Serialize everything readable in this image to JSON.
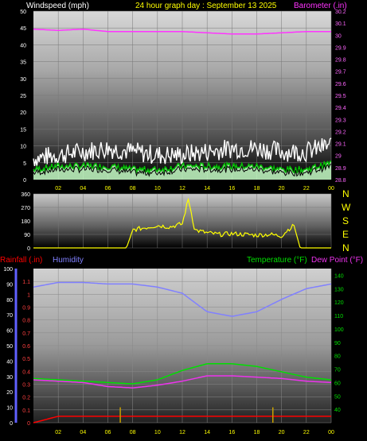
{
  "header": {
    "wind_title": "Windspeed (mph)",
    "graph_title": "24 hour graph day : September 13 2025",
    "baro_title": "Barometer (.in)"
  },
  "compass": [
    "N",
    "W",
    "S",
    "E",
    "N"
  ],
  "lower_header": {
    "rain": "Rainfall (.in)",
    "humidity": "Humidity",
    "temperature": "Temperature (°F)",
    "dewpoint": "Dew Point (°F)"
  },
  "colors": {
    "wind_gust": "#ffffff",
    "wind_avg": "#00c000",
    "wind_fill": "#c8ffc8",
    "barometer": "#ff33ff",
    "direction": "#ffff00",
    "humidity": "#8080ff",
    "temperature": "#00e000",
    "dewpoint": "#ee33ee",
    "rain": "#ff0000",
    "rain_bar": "#c8a000",
    "time_label": "#ffff00"
  },
  "x_ticks": [
    "02",
    "04",
    "06",
    "08",
    "10",
    "12",
    "14",
    "16",
    "18",
    "20",
    "22",
    "00"
  ],
  "chart_data": [
    {
      "type": "line",
      "name": "wind-barometer",
      "title": "24 hour graph day : September 13 2025",
      "x_ticks": [
        "02",
        "04",
        "06",
        "08",
        "10",
        "12",
        "14",
        "16",
        "18",
        "20",
        "22",
        "00"
      ],
      "y_left": {
        "label": "Windspeed (mph)",
        "ticks": [
          0,
          5,
          10,
          15,
          20,
          25,
          30,
          35,
          40,
          45,
          50
        ],
        "range": [
          0,
          50
        ]
      },
      "y_right": {
        "label": "Barometer (.in)",
        "ticks": [
          28.8,
          28.9,
          29,
          29.1,
          29.2,
          29.3,
          29.4,
          29.5,
          29.6,
          29.7,
          29.8,
          29.9,
          30,
          30.1,
          30.2
        ],
        "range": [
          28.8,
          30.2
        ]
      },
      "x_hours": [
        0,
        2,
        4,
        6,
        8,
        10,
        12,
        14,
        16,
        18,
        20,
        22,
        24
      ],
      "series": [
        {
          "name": "Barometer (.in)",
          "axis": "right",
          "values": [
            30.05,
            30.04,
            30.05,
            30.03,
            30.03,
            30.03,
            30.03,
            30.02,
            30.01,
            30.01,
            30.02,
            30.03,
            30.03
          ]
        },
        {
          "name": "gust",
          "axis": "left",
          "values": [
            6,
            7,
            8,
            9,
            8,
            7,
            7,
            8,
            9,
            9,
            8,
            8,
            10
          ]
        },
        {
          "name": "avg",
          "axis": "left",
          "values": [
            3,
            4,
            4,
            4,
            3,
            3,
            4,
            4,
            4,
            4,
            3,
            3,
            5
          ]
        }
      ]
    },
    {
      "type": "line",
      "name": "wind-direction",
      "y_ticks": [
        0,
        90,
        180,
        270,
        360
      ],
      "range": [
        0,
        360
      ],
      "x_hours": [
        0,
        7.5,
        8,
        9,
        10,
        11,
        12,
        12.5,
        13,
        14,
        15,
        16,
        17,
        18,
        19,
        20,
        20.5,
        21,
        21.5,
        24
      ],
      "values": [
        0,
        0,
        120,
        135,
        150,
        140,
        160,
        330,
        120,
        100,
        90,
        95,
        90,
        85,
        90,
        80,
        120,
        150,
        0,
        0
      ]
    },
    {
      "type": "line",
      "name": "temp-humidity-rain",
      "x_ticks": [
        "02",
        "04",
        "06",
        "08",
        "10",
        "12",
        "14",
        "16",
        "18",
        "20",
        "22",
        "00"
      ],
      "y_humidity": {
        "label": "Humidity",
        "ticks": [
          0,
          10,
          20,
          30,
          40,
          50,
          60,
          70,
          80,
          90,
          100
        ],
        "range": [
          0,
          100
        ]
      },
      "y_rain": {
        "label": "Rainfall (.in)",
        "ticks": [
          0,
          0.1,
          0.2,
          0.3,
          0.4,
          0.5,
          0.6,
          0.7,
          0.8,
          0.9,
          1,
          1.1
        ],
        "range": [
          0,
          1.2
        ]
      },
      "y_temp": {
        "label": "Temperature (°F)",
        "ticks": [
          40,
          50,
          60,
          70,
          80,
          90,
          100,
          110,
          120,
          130,
          140
        ],
        "range": [
          30,
          145
        ]
      },
      "x_hours": [
        0,
        2,
        4,
        6,
        8,
        10,
        12,
        14,
        16,
        18,
        20,
        22,
        24
      ],
      "series": [
        {
          "name": "Humidity",
          "values": [
            88,
            91,
            91,
            90,
            90,
            88,
            84,
            72,
            69,
            72,
            80,
            87,
            90
          ]
        },
        {
          "name": "Temperature (°F)",
          "values": [
            63,
            62,
            61,
            60,
            59,
            62,
            69,
            74,
            74,
            72,
            68,
            64,
            62
          ]
        },
        {
          "name": "Dew Point (°F)",
          "values": [
            62,
            61,
            60,
            57,
            56,
            58,
            61,
            65,
            65,
            64,
            63,
            61,
            60
          ]
        },
        {
          "name": "Rainfall (.in)",
          "values": [
            0,
            0.05,
            0.05,
            0.05,
            0.05,
            0.05,
            0.05,
            0.05,
            0.05,
            0.05,
            0.05,
            0.05,
            0.05
          ]
        }
      ],
      "rain_bars_hours": [
        7,
        19.3
      ]
    }
  ]
}
